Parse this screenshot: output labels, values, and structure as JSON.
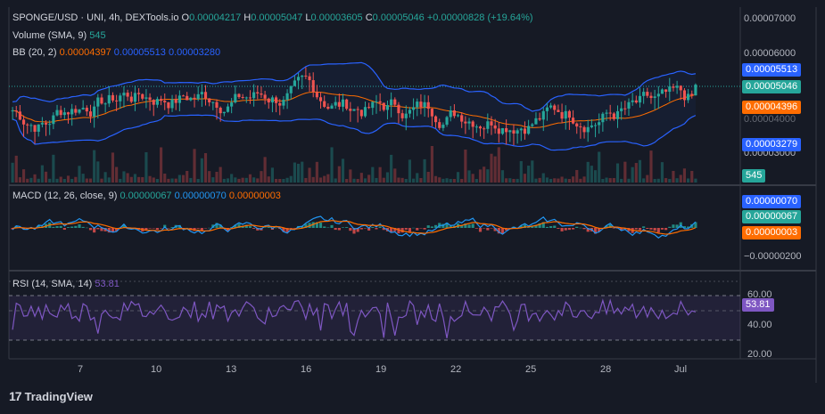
{
  "header": {
    "symbol": "SPONGE/USD · UNI, 4h, DEXTools.io",
    "o_label": "O",
    "o_value": "0.00004217",
    "h_label": "H",
    "h_value": "0.00005047",
    "l_label": "L",
    "l_value": "0.00003605",
    "c_label": "C",
    "c_value": "0.00005046",
    "change": "+0.00000828 (+19.64%)"
  },
  "volume_legend": {
    "label": "Volume (SMA, 9)",
    "value": "545"
  },
  "bb_legend": {
    "label": "BB (20, 2)",
    "basis": "0.00004397",
    "upper": "0.00005513",
    "lower": "0.00003280"
  },
  "macd_legend": {
    "label": "MACD (12, 26, close, 9)",
    "hist": "0.00000067",
    "macd": "0.00000070",
    "signal": "0.00000003"
  },
  "rsi_legend": {
    "label": "RSI (14, SMA, 14)",
    "value": "53.81"
  },
  "price_axis": [
    "0.00007000",
    "0.00006000",
    "0.00004000",
    "0.00003000"
  ],
  "macd_axis": [
    "−0.00000200"
  ],
  "rsi_axis": [
    "60.00",
    "40.00",
    "20.00"
  ],
  "badges": {
    "bb_upper": "0.00005513",
    "last_price": "0.00005046",
    "bb_basis": "0.00004396",
    "bb_lower": "0.00003279",
    "volume": "545",
    "macd": "0.00000070",
    "hist": "0.00000067",
    "signal": "0.00000003",
    "rsi": "53.81"
  },
  "colors": {
    "up": "#26a69a",
    "down": "#ef5350",
    "bb": "#2962ff",
    "basis": "#ff6d00",
    "macd": "#2196f3",
    "signal": "#ff6d00",
    "rsi": "#7e57c2"
  },
  "brand": "TradingView",
  "chart_data": {
    "type": "candlestick",
    "x_ticks": [
      "7",
      "10",
      "13",
      "16",
      "19",
      "22",
      "25",
      "28",
      "Jul"
    ],
    "price_range": [
      2.5e-05,
      7.2e-05
    ],
    "series_summary": {
      "last_close": 5.046e-05,
      "bb_upper": 5.513e-05,
      "bb_basis": 4.396e-05,
      "bb_lower": 3.279e-05,
      "volume_sma": 545
    },
    "macd": {
      "macd": 7e-07,
      "signal": 3e-08,
      "hist": 6.7e-07
    },
    "rsi": {
      "value": 53.81,
      "bands": [
        70,
        50,
        30
      ]
    }
  }
}
